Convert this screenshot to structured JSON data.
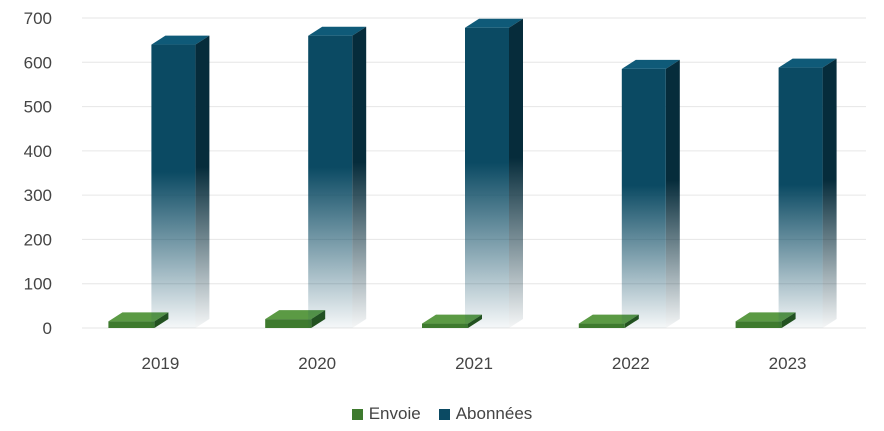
{
  "chart_data": {
    "type": "bar",
    "categories": [
      "2019",
      "2020",
      "2021",
      "2022",
      "2023"
    ],
    "series": [
      {
        "name": "Envoie",
        "values": [
          15,
          20,
          10,
          10,
          15
        ],
        "color": "#3e7a2e"
      },
      {
        "name": "Abonnées",
        "values": [
          640,
          660,
          678,
          585,
          588
        ],
        "color": "#0b4a63"
      }
    ],
    "y_ticks": [
      "0",
      "100",
      "200",
      "300",
      "400",
      "500",
      "600",
      "700"
    ],
    "ylim": [
      0,
      700
    ],
    "grid": true,
    "legend_position": "bottom"
  }
}
